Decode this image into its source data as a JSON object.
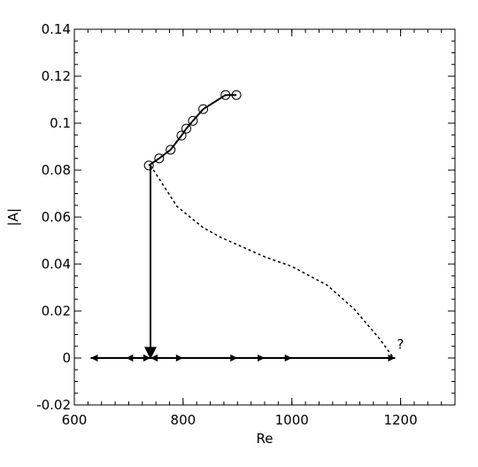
{
  "chart_data": {
    "type": "line",
    "xlabel": "Re",
    "ylabel": "|A|",
    "xlim": [
      600,
      1300
    ],
    "xticks": [
      600,
      800,
      1000,
      1200
    ],
    "ylim": [
      -0.02,
      0.14
    ],
    "yticks": [
      0.14,
      0.12,
      0.1,
      0.08,
      0.06,
      0.04,
      0.02,
      0,
      -0.02
    ],
    "series": [
      {
        "color": "#000000",
        "style": "solid",
        "marker": "circle",
        "x": [
          737,
          756,
          777,
          797,
          806,
          818,
          837,
          878,
          898
        ],
        "values": [
          0.082,
          0.085,
          0.0887,
          0.0947,
          0.0977,
          0.101,
          0.106,
          0.112,
          0.112
        ]
      },
      {
        "color": "#000000",
        "style": "dashed",
        "x": [
          740,
          789,
          837,
          870,
          951,
          1000,
          1065,
          1114,
          1162,
          1187
        ],
        "values": [
          0.082,
          0.0645,
          0.0555,
          0.0513,
          0.043,
          0.039,
          0.031,
          0.021,
          0.008,
          0
        ]
      },
      {
        "color": "#000000",
        "style": "arrow-down",
        "x": [
          740,
          740
        ],
        "values": [
          0.082,
          0
        ]
      },
      {
        "color": "#000000",
        "style": "arrows",
        "x": [
          630,
          695,
          740,
          800,
          900,
          950,
          1000,
          1190
        ],
        "values": [
          0,
          0,
          0,
          0,
          0,
          0,
          0,
          0
        ]
      }
    ],
    "annotations": [
      {
        "text": "?",
        "x": 1190,
        "y": 0.004
      }
    ]
  }
}
